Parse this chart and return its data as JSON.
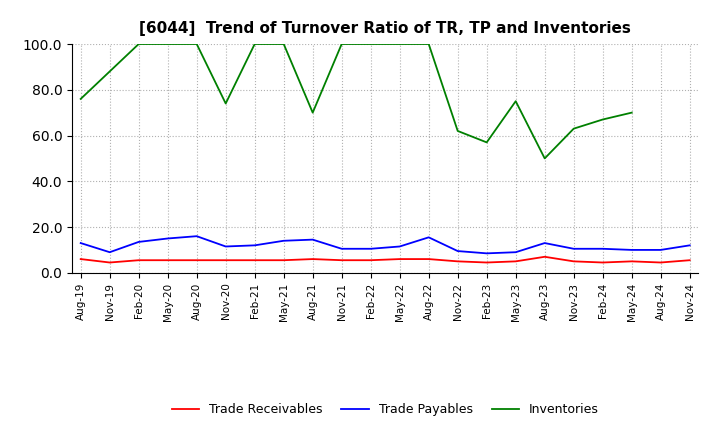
{
  "title": "[6044]  Trend of Turnover Ratio of TR, TP and Inventories",
  "x_labels": [
    "Aug-19",
    "Nov-19",
    "Feb-20",
    "May-20",
    "Aug-20",
    "Nov-20",
    "Feb-21",
    "May-21",
    "Aug-21",
    "Nov-21",
    "Feb-22",
    "May-22",
    "Aug-22",
    "Nov-22",
    "Feb-23",
    "May-23",
    "Aug-23",
    "Nov-23",
    "Feb-24",
    "May-24",
    "Aug-24",
    "Nov-24"
  ],
  "trade_receivables": [
    6.0,
    4.5,
    5.5,
    5.5,
    5.5,
    5.5,
    5.5,
    5.5,
    6.0,
    5.5,
    5.5,
    6.0,
    6.0,
    5.0,
    4.5,
    5.0,
    7.0,
    5.0,
    4.5,
    5.0,
    4.5,
    5.5
  ],
  "trade_payables": [
    13.0,
    9.0,
    13.5,
    15.0,
    16.0,
    11.5,
    12.0,
    14.0,
    14.5,
    10.5,
    10.5,
    11.5,
    15.5,
    9.5,
    8.5,
    9.0,
    13.0,
    10.5,
    10.5,
    10.0,
    10.0,
    12.0
  ],
  "inventories": [
    76.0,
    88.0,
    100.0,
    100.0,
    100.0,
    74.0,
    100.0,
    100.0,
    70.0,
    100.0,
    100.0,
    100.0,
    100.0,
    62.0,
    57.0,
    75.0,
    50.0,
    63.0,
    67.0,
    70.0,
    null,
    null
  ],
  "ylim": [
    0.0,
    100.0
  ],
  "yticks": [
    0.0,
    20.0,
    40.0,
    60.0,
    80.0,
    100.0
  ],
  "color_tr": "#ff0000",
  "color_tp": "#0000ff",
  "color_inv": "#008000",
  "legend_labels": [
    "Trade Receivables",
    "Trade Payables",
    "Inventories"
  ],
  "bg_color": "#ffffff",
  "grid_color": "#b0b0b0"
}
